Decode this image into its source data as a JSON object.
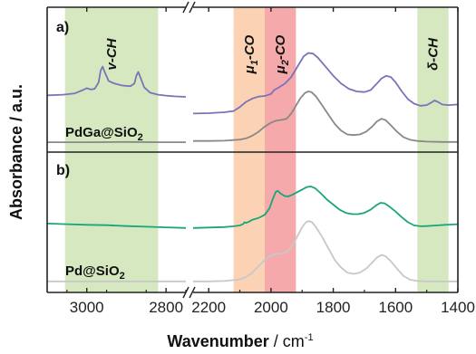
{
  "chart_data": {
    "type": "line",
    "title": "",
    "xlabel": "Wavenumber",
    "xlabel_unit": "cm",
    "xlabel_unit_exp": "-1",
    "ylabel": "Absorbance / a.u.",
    "x_axis_reversed": true,
    "x_axis_broken": true,
    "x_segments": [
      {
        "range": [
          3100,
          2750
        ],
        "ticks": [
          3000,
          2800
        ]
      },
      {
        "range": [
          2250,
          1400
        ],
        "ticks": [
          2200,
          2000,
          1800,
          1600,
          1400
        ]
      }
    ],
    "bands": [
      {
        "name": "v-CH",
        "base": "v",
        "sub": "",
        "suffix": "-CH",
        "from": 3055,
        "to": 2820,
        "color": "#d5e8c0"
      },
      {
        "name": "μ1-CO",
        "base": "μ",
        "sub": "1",
        "suffix": "-CO",
        "from": 2120,
        "to": 2020,
        "color": "#fbd3b4"
      },
      {
        "name": "μ2-CO",
        "base": "μ",
        "sub": "2",
        "suffix": "-CO",
        "from": 2020,
        "to": 1920,
        "color": "#f5a9ab"
      },
      {
        "name": "δ-CH",
        "base": "δ",
        "sub": "",
        "suffix": "-CH",
        "from": 1530,
        "to": 1430,
        "color": "#d5e8c0"
      }
    ],
    "panels": [
      {
        "label": "a)",
        "sample": "PdGa@SiO",
        "sample_sub": "2",
        "series": [
          {
            "color": "#7b72b8",
            "points": [
              [
                3100,
                0.38
              ],
              [
                3060,
                0.385
              ],
              [
                3030,
                0.395
              ],
              [
                3010,
                0.42
              ],
              [
                3000,
                0.435
              ],
              [
                2990,
                0.425
              ],
              [
                2980,
                0.43
              ],
              [
                2970,
                0.48
              ],
              [
                2965,
                0.57
              ],
              [
                2960,
                0.6
              ],
              [
                2955,
                0.56
              ],
              [
                2945,
                0.49
              ],
              [
                2930,
                0.47
              ],
              [
                2910,
                0.455
              ],
              [
                2890,
                0.45
              ],
              [
                2880,
                0.47
              ],
              [
                2875,
                0.53
              ],
              [
                2870,
                0.56
              ],
              [
                2865,
                0.52
              ],
              [
                2855,
                0.44
              ],
              [
                2840,
                0.4
              ],
              [
                2820,
                0.385
              ],
              [
                2800,
                0.378
              ],
              [
                2780,
                0.372
              ],
              [
                2750,
                0.368
              ],
              [
                2250,
                0.24
              ],
              [
                2200,
                0.243
              ],
              [
                2150,
                0.25
              ],
              [
                2120,
                0.26
              ],
              [
                2100,
                0.29
              ],
              [
                2080,
                0.33
              ],
              [
                2060,
                0.355
              ],
              [
                2040,
                0.37
              ],
              [
                2020,
                0.375
              ],
              [
                2000,
                0.39
              ],
              [
                1990,
                0.42
              ],
              [
                1975,
                0.44
              ],
              [
                1955,
                0.47
              ],
              [
                1935,
                0.52
              ],
              [
                1915,
                0.6
              ],
              [
                1895,
                0.68
              ],
              [
                1880,
                0.705
              ],
              [
                1865,
                0.7
              ],
              [
                1850,
                0.67
              ],
              [
                1825,
                0.6
              ],
              [
                1800,
                0.53
              ],
              [
                1775,
                0.47
              ],
              [
                1750,
                0.43
              ],
              [
                1725,
                0.41
              ],
              [
                1700,
                0.405
              ],
              [
                1680,
                0.42
              ],
              [
                1660,
                0.47
              ],
              [
                1645,
                0.51
              ],
              [
                1630,
                0.53
              ],
              [
                1615,
                0.52
              ],
              [
                1600,
                0.48
              ],
              [
                1580,
                0.41
              ],
              [
                1560,
                0.35
              ],
              [
                1540,
                0.315
              ],
              [
                1520,
                0.3
              ],
              [
                1500,
                0.305
              ],
              [
                1485,
                0.325
              ],
              [
                1475,
                0.34
              ],
              [
                1465,
                0.33
              ],
              [
                1450,
                0.31
              ],
              [
                1430,
                0.305
              ],
              [
                1400,
                0.31
              ]
            ]
          },
          {
            "color": "#888888",
            "points": [
              [
                3100,
                0.02
              ],
              [
                3000,
                0.02
              ],
              [
                2900,
                0.022
              ],
              [
                2800,
                0.02
              ],
              [
                2750,
                0.02
              ],
              [
                2250,
                0.03
              ],
              [
                2200,
                0.03
              ],
              [
                2150,
                0.032
              ],
              [
                2100,
                0.04
              ],
              [
                2080,
                0.05
              ],
              [
                2060,
                0.07
              ],
              [
                2040,
                0.1
              ],
              [
                2020,
                0.14
              ],
              [
                2000,
                0.17
              ],
              [
                1985,
                0.185
              ],
              [
                1970,
                0.19
              ],
              [
                1950,
                0.2
              ],
              [
                1935,
                0.24
              ],
              [
                1920,
                0.3
              ],
              [
                1905,
                0.36
              ],
              [
                1890,
                0.4
              ],
              [
                1880,
                0.41
              ],
              [
                1870,
                0.405
              ],
              [
                1855,
                0.37
              ],
              [
                1835,
                0.3
              ],
              [
                1815,
                0.23
              ],
              [
                1795,
                0.16
              ],
              [
                1775,
                0.11
              ],
              [
                1755,
                0.08
              ],
              [
                1735,
                0.075
              ],
              [
                1715,
                0.08
              ],
              [
                1695,
                0.1
              ],
              [
                1675,
                0.14
              ],
              [
                1660,
                0.18
              ],
              [
                1645,
                0.2
              ],
              [
                1632,
                0.19
              ],
              [
                1615,
                0.15
              ],
              [
                1595,
                0.1
              ],
              [
                1575,
                0.06
              ],
              [
                1555,
                0.04
              ],
              [
                1530,
                0.03
              ],
              [
                1500,
                0.025
              ],
              [
                1450,
                0.022
              ],
              [
                1400,
                0.022
              ]
            ]
          }
        ]
      },
      {
        "label": "b)",
        "sample": "Pd@SiO",
        "sample_sub": "2",
        "series": [
          {
            "color": "#1aa57a",
            "points": [
              [
                3100,
                0.49
              ],
              [
                3050,
                0.485
              ],
              [
                3000,
                0.48
              ],
              [
                2950,
                0.477
              ],
              [
                2900,
                0.47
              ],
              [
                2850,
                0.465
              ],
              [
                2800,
                0.46
              ],
              [
                2750,
                0.455
              ],
              [
                2250,
                0.455
              ],
              [
                2200,
                0.458
              ],
              [
                2150,
                0.462
              ],
              [
                2120,
                0.468
              ],
              [
                2100,
                0.475
              ],
              [
                2090,
                0.485
              ],
              [
                2085,
                0.5
              ],
              [
                2080,
                0.495
              ],
              [
                2070,
                0.505
              ],
              [
                2060,
                0.52
              ],
              [
                2045,
                0.53
              ],
              [
                2035,
                0.54
              ],
              [
                2020,
                0.56
              ],
              [
                2005,
                0.61
              ],
              [
                1995,
                0.68
              ],
              [
                1985,
                0.74
              ],
              [
                1978,
                0.75
              ],
              [
                1970,
                0.73
              ],
              [
                1958,
                0.71
              ],
              [
                1945,
                0.705
              ],
              [
                1930,
                0.72
              ],
              [
                1915,
                0.74
              ],
              [
                1900,
                0.76
              ],
              [
                1885,
                0.78
              ],
              [
                1872,
                0.785
              ],
              [
                1858,
                0.77
              ],
              [
                1840,
                0.73
              ],
              [
                1820,
                0.68
              ],
              [
                1800,
                0.64
              ],
              [
                1780,
                0.6
              ],
              [
                1760,
                0.575
              ],
              [
                1740,
                0.565
              ],
              [
                1720,
                0.565
              ],
              [
                1700,
                0.575
              ],
              [
                1680,
                0.6
              ],
              [
                1662,
                0.635
              ],
              [
                1648,
                0.655
              ],
              [
                1635,
                0.65
              ],
              [
                1620,
                0.625
              ],
              [
                1600,
                0.585
              ],
              [
                1580,
                0.54
              ],
              [
                1560,
                0.5
              ],
              [
                1540,
                0.475
              ],
              [
                1520,
                0.468
              ],
              [
                1500,
                0.47
              ],
              [
                1470,
                0.475
              ],
              [
                1440,
                0.48
              ],
              [
                1420,
                0.482
              ],
              [
                1400,
                0.485
              ]
            ]
          },
          {
            "color": "#c8c8c8",
            "points": [
              [
                3100,
                0.03
              ],
              [
                3000,
                0.03
              ],
              [
                2900,
                0.03
              ],
              [
                2800,
                0.03
              ],
              [
                2750,
                0.03
              ],
              [
                2250,
                0.03
              ],
              [
                2200,
                0.03
              ],
              [
                2150,
                0.033
              ],
              [
                2100,
                0.045
              ],
              [
                2080,
                0.065
              ],
              [
                2060,
                0.1
              ],
              [
                2040,
                0.15
              ],
              [
                2020,
                0.2
              ],
              [
                2005,
                0.23
              ],
              [
                1990,
                0.245
              ],
              [
                1975,
                0.25
              ],
              [
                1960,
                0.255
              ],
              [
                1945,
                0.27
              ],
              [
                1930,
                0.32
              ],
              [
                1915,
                0.39
              ],
              [
                1900,
                0.46
              ],
              [
                1888,
                0.5
              ],
              [
                1878,
                0.51
              ],
              [
                1868,
                0.5
              ],
              [
                1855,
                0.46
              ],
              [
                1835,
                0.38
              ],
              [
                1815,
                0.29
              ],
              [
                1795,
                0.2
              ],
              [
                1775,
                0.14
              ],
              [
                1755,
                0.1
              ],
              [
                1735,
                0.09
              ],
              [
                1715,
                0.1
              ],
              [
                1695,
                0.13
              ],
              [
                1675,
                0.18
              ],
              [
                1660,
                0.22
              ],
              [
                1645,
                0.24
              ],
              [
                1632,
                0.23
              ],
              [
                1615,
                0.19
              ],
              [
                1595,
                0.13
              ],
              [
                1575,
                0.075
              ],
              [
                1555,
                0.045
              ],
              [
                1530,
                0.033
              ],
              [
                1500,
                0.03
              ],
              [
                1450,
                0.03
              ],
              [
                1400,
                0.03
              ]
            ]
          }
        ]
      }
    ]
  }
}
